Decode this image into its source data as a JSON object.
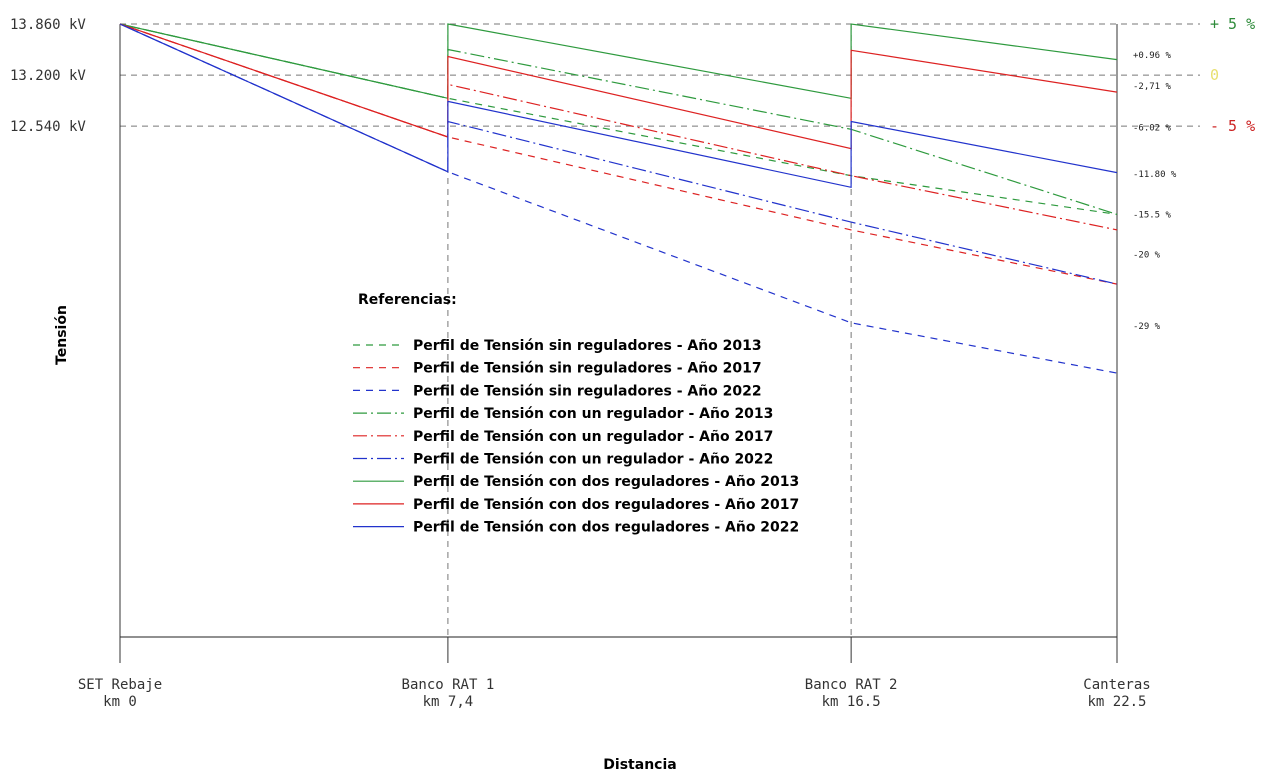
{
  "chart_data": {
    "type": "line",
    "xlabel": "Distancia",
    "ylabel": "Tensión",
    "y_ticks": [
      {
        "value": 13.86,
        "label": "13.860 kV"
      },
      {
        "value": 13.2,
        "label": "13.200 kV"
      },
      {
        "value": 12.54,
        "label": "12.540 kV"
      }
    ],
    "x_ticks": [
      {
        "km": 0,
        "line1": "SET Rebaje",
        "line2": "km 0"
      },
      {
        "km": 7.4,
        "line1": "Banco RAT 1",
        "line2": "km 7,4"
      },
      {
        "km": 16.5,
        "line1": "Banco RAT 2",
        "line2": "km 16.5"
      },
      {
        "km": 22.5,
        "line1": "Canteras",
        "line2": "km 22.5"
      }
    ],
    "xlim": [
      0,
      22.5
    ],
    "ylim": [
      5.94,
      13.86
    ],
    "band_labels": [
      {
        "label": "+ 5 %",
        "color": "#2e8b3a",
        "y": 13.86
      },
      {
        "label": "0",
        "color": "#e8e070",
        "y": 13.2
      },
      {
        "label": "- 5 %",
        "color": "#cc2222",
        "y": 12.54
      }
    ],
    "end_percent_labels": [
      "+0.96 %",
      "-2,71 %",
      "-6.02 %",
      "-11.80 %",
      "-15.5 %",
      "-20 %",
      "-29 %"
    ],
    "legend_title": "Referencias:",
    "series": [
      {
        "name": "Perfil de Tensión sin reguladores  - Año 2013",
        "color": "#2e9a3e",
        "dash": "dashed",
        "x": [
          0,
          7.4,
          16.5,
          22.5
        ],
        "y": [
          13.86,
          12.9,
          11.9,
          11.4
        ]
      },
      {
        "name": "Perfil de Tensión sin reguladores  - Año 2017",
        "color": "#dd2222",
        "dash": "dashed",
        "x": [
          0,
          7.4,
          16.5,
          22.5
        ],
        "y": [
          13.86,
          12.4,
          11.2,
          10.5
        ]
      },
      {
        "name": "Perfil de Tensión sin reguladores  - Año 2022",
        "color": "#2233cc",
        "dash": "dashed",
        "x": [
          0,
          7.4,
          16.5,
          22.5
        ],
        "y": [
          13.86,
          11.95,
          10.0,
          9.35
        ]
      },
      {
        "name": "Perfil de Tensión con un regulador  - Año 2013",
        "color": "#2e9a3e",
        "dash": "dashdot",
        "x": [
          0,
          7.4,
          7.4,
          16.5,
          22.5
        ],
        "y": [
          13.86,
          12.9,
          13.53,
          12.5,
          11.4
        ]
      },
      {
        "name": "Perfil de Tensión con un regulador  - Año 2017",
        "color": "#dd2222",
        "dash": "dashdot",
        "x": [
          0,
          7.4,
          7.4,
          16.5,
          22.5
        ],
        "y": [
          13.86,
          12.4,
          13.08,
          11.9,
          11.2
        ]
      },
      {
        "name": "Perfil de Tensión con un regulador  - Año 2022",
        "color": "#2233cc",
        "dash": "dashdot",
        "x": [
          0,
          7.4,
          7.4,
          16.5,
          22.5
        ],
        "y": [
          13.86,
          11.95,
          12.6,
          11.3,
          10.5
        ]
      },
      {
        "name": "Perfil de Tensión con dos reguladores  - Año 2013",
        "color": "#2e9a3e",
        "dash": "solid",
        "x": [
          0,
          7.4,
          7.4,
          16.5,
          16.5,
          22.5
        ],
        "y": [
          13.86,
          12.9,
          13.86,
          12.9,
          13.86,
          13.4
        ]
      },
      {
        "name": "Perfil de Tensión con dos reguladores  - Año 2017",
        "color": "#dd2222",
        "dash": "solid",
        "x": [
          0,
          7.4,
          7.4,
          16.5,
          16.5,
          22.5
        ],
        "y": [
          13.86,
          12.4,
          13.44,
          12.25,
          13.52,
          12.98
        ]
      },
      {
        "name": "Perfil de Tensión con dos reguladores  - Año 2022",
        "color": "#2233cc",
        "dash": "solid",
        "x": [
          0,
          7.4,
          7.4,
          16.5,
          16.5,
          22.5
        ],
        "y": [
          13.86,
          11.95,
          12.86,
          11.75,
          12.6,
          11.94
        ]
      }
    ]
  }
}
